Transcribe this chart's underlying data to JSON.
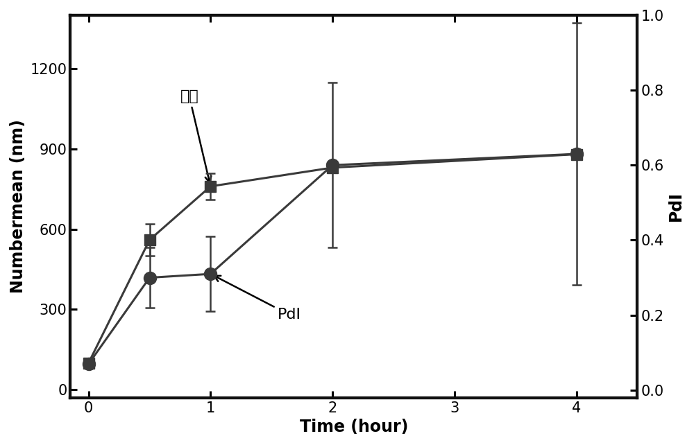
{
  "time": [
    0,
    0.5,
    1,
    2,
    4
  ],
  "size_mean": [
    100,
    560,
    760,
    830,
    880
  ],
  "size_err": [
    0,
    60,
    50,
    0,
    0
  ],
  "pdi_mean": [
    0.07,
    0.3,
    0.31,
    0.6,
    0.63
  ],
  "pdi_err": [
    0.01,
    0.08,
    0.1,
    0.22,
    0.35
  ],
  "xlabel": "Time (hour)",
  "ylabel_left": "Numbermean (nm)",
  "ylabel_right": "PdI",
  "size_label": "粒径",
  "pdi_label": "PdI",
  "xlim": [
    -0.15,
    4.5
  ],
  "ylim_left": [
    -30,
    1400
  ],
  "ylim_right": [
    -0.02,
    1.0
  ],
  "xticks": [
    0,
    1,
    2,
    3,
    4
  ],
  "yticks_left": [
    0,
    300,
    600,
    900,
    1200
  ],
  "yticks_right": [
    0.0,
    0.2,
    0.4,
    0.6,
    0.8,
    1.0
  ],
  "line_color": "#3a3a3a",
  "marker_size_square": 11,
  "marker_size_circle": 13,
  "linewidth": 2.2,
  "bg_color": "#ffffff",
  "axis_color": "#111111",
  "fontsize_label": 17,
  "fontsize_tick": 15,
  "fontsize_annot": 16,
  "spine_lw": 3.0
}
